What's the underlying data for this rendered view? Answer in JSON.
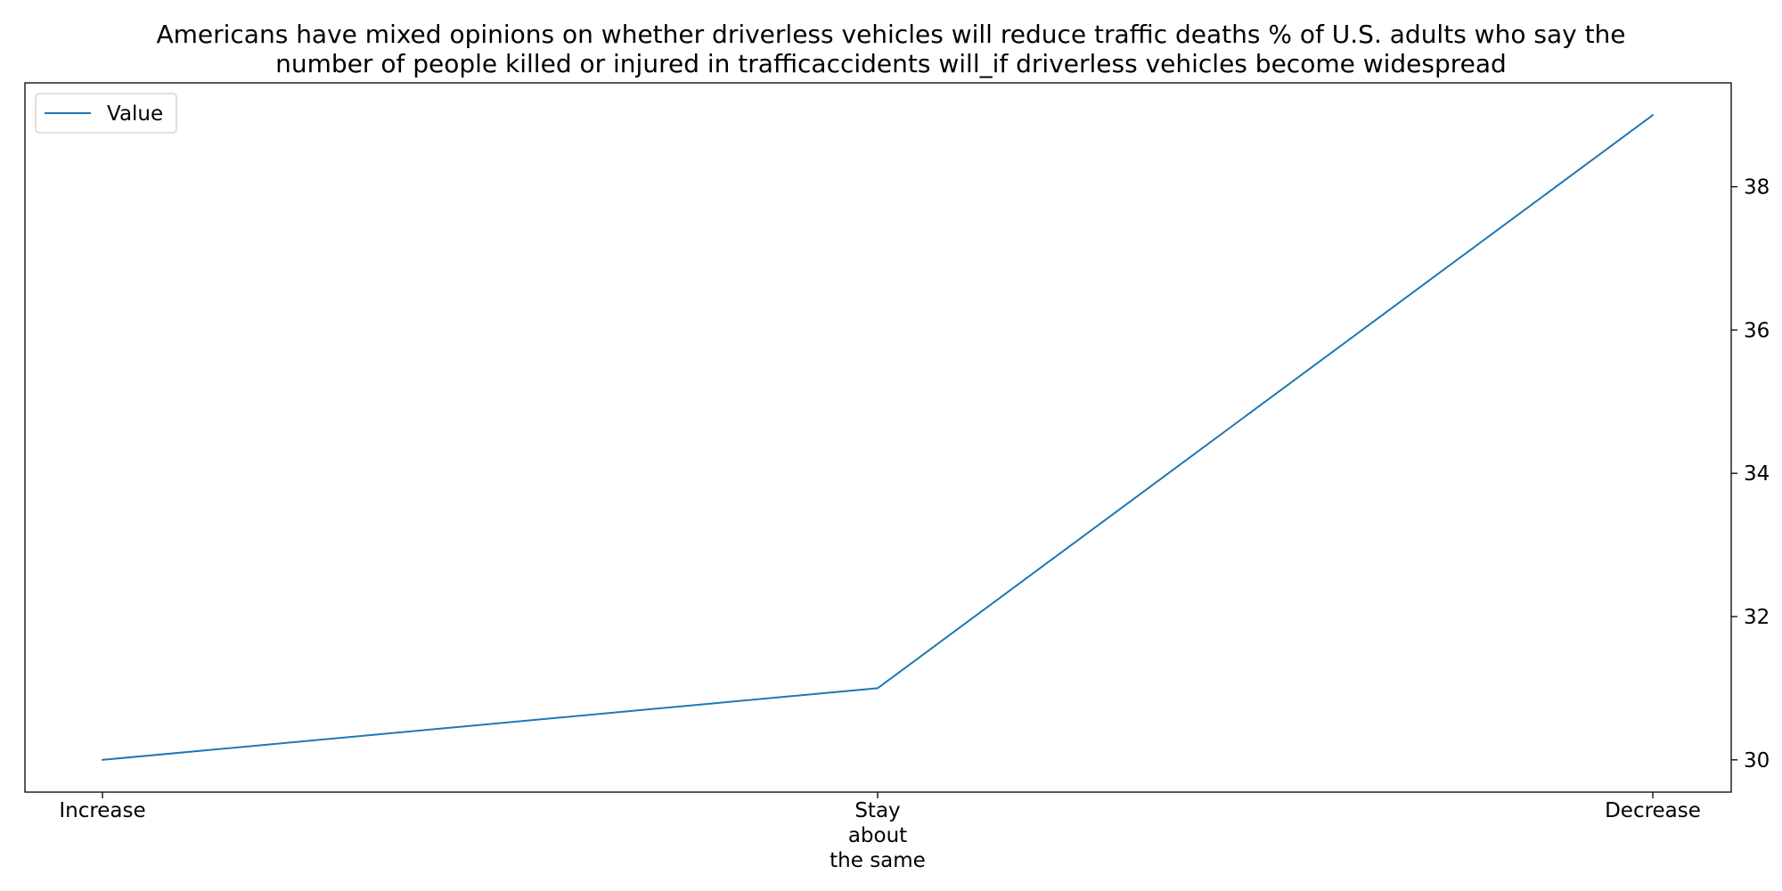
{
  "chart_data": {
    "type": "line",
    "title_lines": [
      "Americans have mixed opinions on whether driverless vehicles will reduce traffic deaths % of U.S. adults who say the",
      "number of people killed or injured in trafficaccidents will_if driverless vehicles become widespread"
    ],
    "xlabel": "",
    "ylabel": "",
    "categories": [
      [
        "Increase"
      ],
      [
        "Stay",
        "about",
        "the same"
      ],
      [
        "Decrease"
      ]
    ],
    "series": [
      {
        "name": "Value",
        "color": "#1f77b4",
        "values": [
          30,
          31,
          39
        ]
      }
    ],
    "y_ticks": [
      30,
      32,
      34,
      36,
      38
    ],
    "ylim": [
      29.55,
      39.45
    ],
    "y_axis_side": "right",
    "grid": false,
    "legend_position": "top-left"
  }
}
